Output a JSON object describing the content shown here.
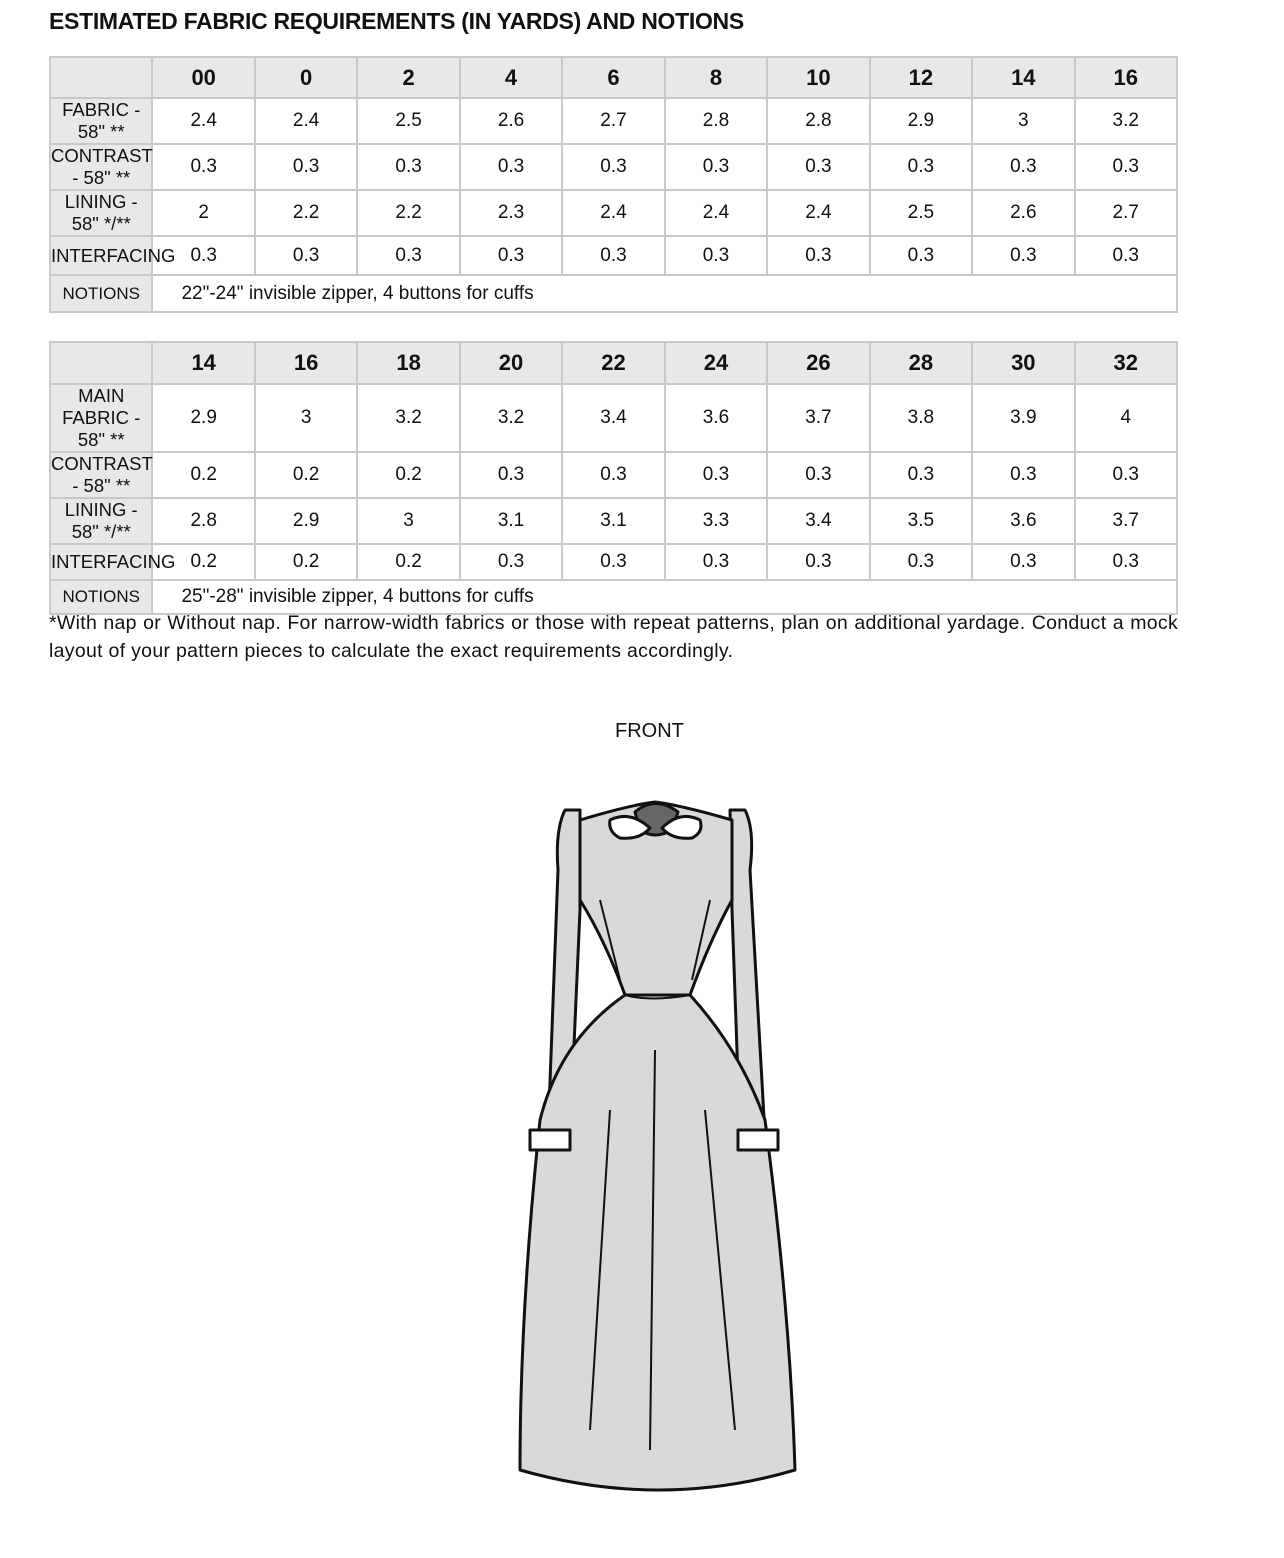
{
  "title": "ESTIMATED FABRIC REQUIREMENTS (IN YARDS) AND NOTIONS",
  "tables": [
    {
      "sizes": [
        "00",
        "0",
        "2",
        "4",
        "6",
        "8",
        "10",
        "12",
        "14",
        "16"
      ],
      "rows": [
        {
          "label": "FABRIC - 58\" **",
          "values": [
            "2.4",
            "2.4",
            "2.5",
            "2.6",
            "2.7",
            "2.8",
            "2.8",
            "2.9",
            "3",
            "3.2"
          ]
        },
        {
          "label": "CONTRAST - 58\" **",
          "values": [
            "0.3",
            "0.3",
            "0.3",
            "0.3",
            "0.3",
            "0.3",
            "0.3",
            "0.3",
            "0.3",
            "0.3"
          ]
        },
        {
          "label": "LINING - 58\" */**",
          "values": [
            "2",
            "2.2",
            "2.2",
            "2.3",
            "2.4",
            "2.4",
            "2.4",
            "2.5",
            "2.6",
            "2.7"
          ]
        },
        {
          "label": "INTERFACING",
          "values": [
            "0.3",
            "0.3",
            "0.3",
            "0.3",
            "0.3",
            "0.3",
            "0.3",
            "0.3",
            "0.3",
            "0.3"
          ]
        }
      ],
      "notions_label": "NOTIONS",
      "notions": "22\"-24\" invisible zipper, 4 buttons for cuffs"
    },
    {
      "sizes": [
        "14",
        "16",
        "18",
        "20",
        "22",
        "24",
        "26",
        "28",
        "30",
        "32"
      ],
      "rows": [
        {
          "label": "MAIN FABRIC - 58\" **",
          "values": [
            "2.9",
            "3",
            "3.2",
            "3.2",
            "3.4",
            "3.6",
            "3.7",
            "3.8",
            "3.9",
            "4"
          ]
        },
        {
          "label": "CONTRAST - 58\" **",
          "values": [
            "0.2",
            "0.2",
            "0.2",
            "0.3",
            "0.3",
            "0.3",
            "0.3",
            "0.3",
            "0.3",
            "0.3"
          ]
        },
        {
          "label": "LINING - 58\" */**",
          "values": [
            "2.8",
            "2.9",
            "3",
            "3.1",
            "3.1",
            "3.3",
            "3.4",
            "3.5",
            "3.6",
            "3.7"
          ]
        },
        {
          "label": "INTERFACING",
          "values": [
            "0.2",
            "0.2",
            "0.2",
            "0.3",
            "0.3",
            "0.3",
            "0.3",
            "0.3",
            "0.3",
            "0.3"
          ]
        }
      ],
      "notions_label": "NOTIONS",
      "notions": "25\"-28\" invisible zipper, 4 buttons for cuffs"
    }
  ],
  "footnote": "*With nap or Without nap. For narrow-width fabrics or those with repeat patterns, plan on additional yardage. Conduct a mock layout of your pattern pieces to calculate the exact requirements accordingly.",
  "illustration_label": "FRONT",
  "colors": {
    "header_bg": "#e8e8e8",
    "border": "#c8c8c8",
    "dress_fill": "#d9d9d9"
  }
}
